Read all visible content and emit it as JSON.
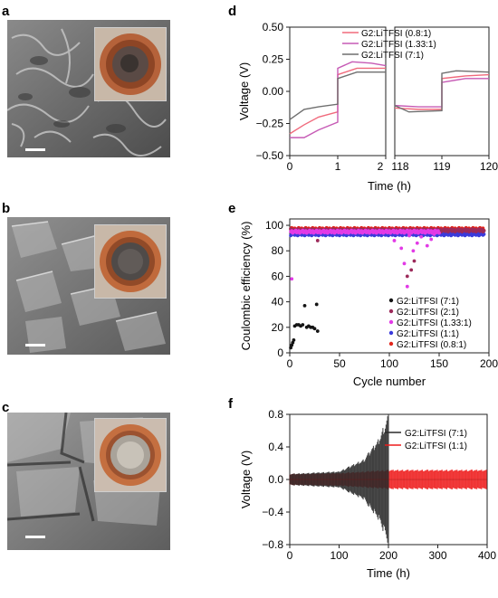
{
  "panels": {
    "a": "a",
    "b": "b",
    "c": "c",
    "d": "d",
    "e": "e",
    "f": "f"
  },
  "colors": {
    "r08": "#f06a7c",
    "r133": "#c65ab5",
    "r71": "#6f6f6f",
    "cyc71": "#141414",
    "cyc21": "#9c2a5a",
    "cyc133": "#e23ae6",
    "cyc11": "#3a3adb",
    "cyc08": "#e2261c",
    "f71": "#2a2a2a",
    "f11": "#ee1b1b"
  },
  "chart_data": [
    {
      "id": "d",
      "type": "line",
      "xlabel": "Time (h)",
      "ylabel": "Voltage (V)",
      "ylim": [
        -0.5,
        0.5
      ],
      "yticks": [
        "0.50",
        "0.25",
        "0.00",
        "−0.25",
        "−0.50"
      ],
      "xticks_left": [
        "0",
        "1",
        "2"
      ],
      "xticks_right": [
        "118",
        "119",
        "120"
      ],
      "legend": [
        "G2:LiTFSI (0.8:1)",
        "G2:LiTFSI (1.33:1)",
        "G2:LiTFSI (7:1)"
      ],
      "series": [
        {
          "name": "G2:LiTFSI (0.8:1)",
          "color": "#f06a7c",
          "left": [
            [
              0,
              -0.33
            ],
            [
              0.3,
              -0.26
            ],
            [
              0.6,
              -0.2
            ],
            [
              1,
              -0.16
            ],
            [
              1,
              0.13
            ],
            [
              1.4,
              0.18
            ],
            [
              1.7,
              0.18
            ],
            [
              2,
              0.18
            ]
          ],
          "right": [
            [
              118,
              -0.13
            ],
            [
              118.5,
              -0.14
            ],
            [
              119,
              -0.14
            ],
            [
              119,
              0.1
            ],
            [
              119.5,
              0.12
            ],
            [
              120,
              0.13
            ]
          ]
        },
        {
          "name": "G2:LiTFSI (1.33:1)",
          "color": "#c65ab5",
          "left": [
            [
              0,
              -0.36
            ],
            [
              0.3,
              -0.36
            ],
            [
              0.6,
              -0.3
            ],
            [
              1,
              -0.24
            ],
            [
              1,
              0.18
            ],
            [
              1.3,
              0.23
            ],
            [
              1.7,
              0.22
            ],
            [
              2,
              0.2
            ]
          ],
          "right": [
            [
              118,
              -0.11
            ],
            [
              118.5,
              -0.12
            ],
            [
              119,
              -0.12
            ],
            [
              119,
              0.07
            ],
            [
              119.5,
              0.1
            ],
            [
              120,
              0.1
            ]
          ]
        },
        {
          "name": "G2:LiTFSI (7:1)",
          "color": "#6f6f6f",
          "left": [
            [
              0,
              -0.22
            ],
            [
              0.3,
              -0.14
            ],
            [
              0.6,
              -0.12
            ],
            [
              1,
              -0.1
            ],
            [
              1,
              0.1
            ],
            [
              1.4,
              0.15
            ],
            [
              1.7,
              0.15
            ],
            [
              2,
              0.15
            ]
          ],
          "right": [
            [
              118,
              -0.11
            ],
            [
              118.3,
              -0.16
            ],
            [
              119,
              -0.15
            ],
            [
              119,
              0.14
            ],
            [
              119.3,
              0.16
            ],
            [
              120,
              0.15
            ]
          ]
        }
      ]
    },
    {
      "id": "e",
      "type": "scatter",
      "xlabel": "Cycle number",
      "ylabel": "Coulombic efficiency (%)",
      "xlim": [
        0,
        200
      ],
      "ylim": [
        0,
        105
      ],
      "xticks": [
        "0",
        "50",
        "100",
        "150",
        "200"
      ],
      "yticks": [
        "0",
        "20",
        "40",
        "60",
        "80",
        "100"
      ],
      "legend": [
        "G2:LiTFSI (7:1)",
        "G2:LiTFSI (2:1)",
        "G2:LiTFSI (1.33:1)",
        "G2:LiTFSI (1:1)",
        "G2:LiTFSI (0.8:1)"
      ],
      "series": [
        {
          "name": "G2:LiTFSI (7:1)",
          "color": "#141414",
          "points": [
            [
              1,
              4
            ],
            [
              2,
              6
            ],
            [
              3,
              8
            ],
            [
              4,
              10
            ],
            [
              5,
              21
            ],
            [
              7,
              22
            ],
            [
              9,
              22
            ],
            [
              11,
              21
            ],
            [
              13,
              22
            ],
            [
              15,
              37
            ],
            [
              17,
              20
            ],
            [
              19,
              21
            ],
            [
              21,
              20
            ],
            [
              23,
              20
            ],
            [
              25,
              19
            ],
            [
              27,
              38
            ],
            [
              28,
              17
            ]
          ]
        },
        {
          "name": "G2:LiTFSI (2:1)",
          "color": "#9c2a5a",
          "range": [
            1,
            195
          ],
          "base": 96,
          "outliers": [
            [
              28,
              88
            ],
            [
              118,
              60
            ],
            [
              122,
              65
            ],
            [
              125,
              72
            ]
          ]
        },
        {
          "name": "G2:LiTFSI (1.33:1)",
          "color": "#e23ae6",
          "range": [
            1,
            150
          ],
          "base": 95,
          "outliers": [
            [
              2,
              58
            ],
            [
              105,
              88
            ],
            [
              112,
              82
            ],
            [
              115,
              70
            ],
            [
              118,
              52
            ],
            [
              120,
              92
            ],
            [
              124,
              80
            ],
            [
              128,
              86
            ],
            [
              132,
              91
            ],
            [
              138,
              84
            ],
            [
              142,
              89
            ],
            [
              145,
              93
            ]
          ]
        },
        {
          "name": "G2:LiTFSI (1:1)",
          "color": "#3a3adb",
          "range": [
            1,
            195
          ],
          "base": 93
        },
        {
          "name": "G2:LiTFSI (0.8:1)",
          "color": "#e2261c",
          "range": [
            1,
            195
          ],
          "base": 97
        }
      ]
    },
    {
      "id": "f",
      "type": "line",
      "xlabel": "Time (h)",
      "ylabel": "Voltage (V)",
      "xlim": [
        0,
        400
      ],
      "ylim": [
        -0.8,
        0.8
      ],
      "xticks": [
        "0",
        "100",
        "200",
        "300",
        "400"
      ],
      "yticks": [
        "0.8",
        "0.4",
        "0.0",
        "−0.4",
        "−0.8"
      ],
      "legend": [
        "G2:LiTFSI (7:1)",
        "G2:LiTFSI (1:1)"
      ],
      "series": [
        {
          "name": "G2:LiTFSI (7:1)",
          "color": "#2a2a2a",
          "envelope": [
            [
              0,
              0.07
            ],
            [
              100,
              0.1
            ],
            [
              150,
              0.25
            ],
            [
              180,
              0.5
            ],
            [
              200,
              0.8
            ]
          ],
          "end": 200
        },
        {
          "name": "G2:LiTFSI (1:1)",
          "color": "#ee1b1b",
          "envelope": [
            [
              0,
              0.07
            ],
            [
              100,
              0.08
            ],
            [
              200,
              0.12
            ],
            [
              400,
              0.12
            ]
          ],
          "end": 400
        }
      ]
    }
  ]
}
